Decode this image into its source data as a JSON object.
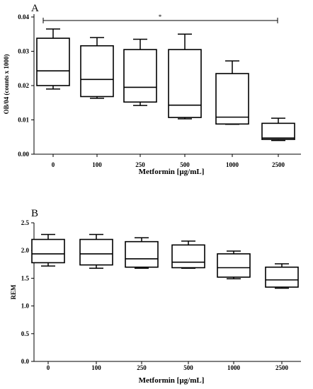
{
  "chart_data": [
    {
      "panel": "A",
      "type": "box",
      "categories": [
        "0",
        "100",
        "250",
        "500",
        "1000",
        "2500"
      ],
      "xlabel": "Metformin [µg/mL]",
      "ylabel": "OB/04 (counts x 1000)",
      "ylim": [
        0,
        0.04
      ],
      "yticks": [
        "0.00",
        "0.01",
        "0.02",
        "0.03",
        "0.04"
      ],
      "ytick_values": [
        0,
        0.01,
        0.02,
        0.03,
        0.04
      ],
      "boxes": [
        {
          "min": 0.019,
          "q1": 0.02,
          "median": 0.0243,
          "q3": 0.0338,
          "max": 0.0365
        },
        {
          "min": 0.0163,
          "q1": 0.0168,
          "median": 0.0218,
          "q3": 0.0316,
          "max": 0.034
        },
        {
          "min": 0.0142,
          "q1": 0.0152,
          "median": 0.0195,
          "q3": 0.0305,
          "max": 0.0335
        },
        {
          "min": 0.0103,
          "q1": 0.0107,
          "median": 0.0143,
          "q3": 0.0305,
          "max": 0.035
        },
        {
          "min": 0.0087,
          "q1": 0.0088,
          "median": 0.0108,
          "q3": 0.0235,
          "max": 0.0272
        },
        {
          "min": 0.004,
          "q1": 0.0043,
          "median": 0.0047,
          "q3": 0.009,
          "max": 0.0105
        }
      ],
      "significance": {
        "from": "0",
        "to": "2500",
        "label": "*"
      }
    },
    {
      "panel": "B",
      "type": "box",
      "categories": [
        "0",
        "100",
        "250",
        "500",
        "1000",
        "2500"
      ],
      "xlabel": "Metformin [µg/mL]",
      "ylabel": "REM",
      "ylim": [
        0,
        2.5
      ],
      "yticks": [
        "0.0",
        "0.5",
        "1.0",
        "1.5",
        "2.0",
        "2.5"
      ],
      "ytick_values": [
        0,
        0.5,
        1.0,
        1.5,
        2.0,
        2.5
      ],
      "boxes": [
        {
          "min": 1.72,
          "q1": 1.78,
          "median": 1.94,
          "q3": 2.2,
          "max": 2.29
        },
        {
          "min": 1.68,
          "q1": 1.74,
          "median": 1.94,
          "q3": 2.2,
          "max": 2.29
        },
        {
          "min": 1.68,
          "q1": 1.7,
          "median": 1.85,
          "q3": 2.16,
          "max": 2.23
        },
        {
          "min": 1.68,
          "q1": 1.69,
          "median": 1.79,
          "q3": 2.1,
          "max": 2.17
        },
        {
          "min": 1.49,
          "q1": 1.52,
          "median": 1.69,
          "q3": 1.94,
          "max": 1.99
        },
        {
          "min": 1.32,
          "q1": 1.34,
          "median": 1.47,
          "q3": 1.7,
          "max": 1.76
        }
      ]
    }
  ]
}
